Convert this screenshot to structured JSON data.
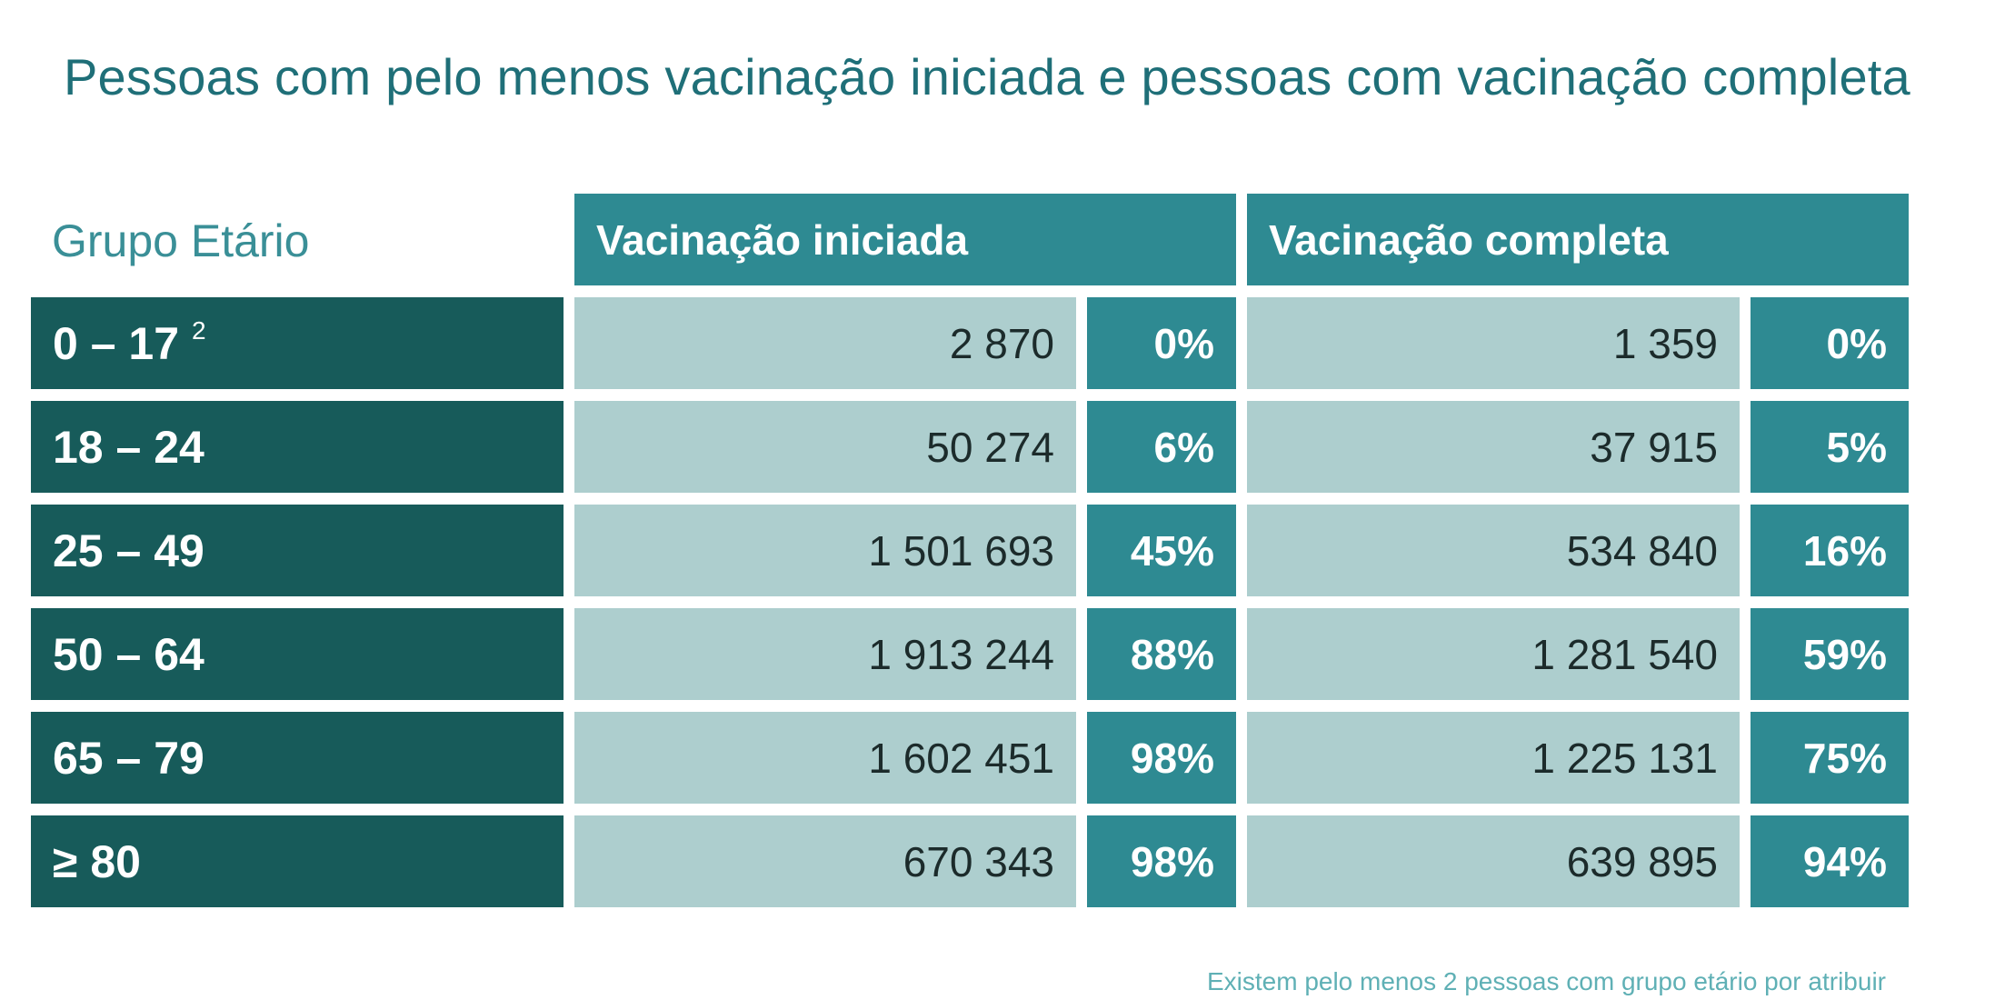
{
  "title": "Pessoas com pelo menos vacinação iniciada e pessoas com vacinação completa",
  "table": {
    "group_header": "Grupo Etário",
    "col_iniciada": "Vacinação iniciada",
    "col_completa": "Vacinação completa",
    "rows": [
      {
        "age": "0 – 17",
        "sup": "2",
        "ini_count": "2 870",
        "ini_pct": "0%",
        "com_count": "1 359",
        "com_pct": "0%"
      },
      {
        "age": "18 – 24",
        "sup": "",
        "ini_count": "50 274",
        "ini_pct": "6%",
        "com_count": "37 915",
        "com_pct": "5%"
      },
      {
        "age": "25 – 49",
        "sup": "",
        "ini_count": "1 501 693",
        "ini_pct": "45%",
        "com_count": "534 840",
        "com_pct": "16%"
      },
      {
        "age": "50 – 64",
        "sup": "",
        "ini_count": "1 913 244",
        "ini_pct": "88%",
        "com_count": "1 281 540",
        "com_pct": "59%"
      },
      {
        "age": "65 – 79",
        "sup": "",
        "ini_count": "1 602 451",
        "ini_pct": "98%",
        "com_count": "1 225 131",
        "com_pct": "75%"
      },
      {
        "age": "≥ 80",
        "sup": "",
        "ini_count": "670 343",
        "ini_pct": "98%",
        "com_count": "639 895",
        "com_pct": "94%"
      }
    ]
  },
  "footnote": "Existem pelo menos 2 pessoas com grupo etário por atribuir",
  "colors": {
    "title": "#1f6f78",
    "age_cell": "#175b5a",
    "header_cell": "#2e8a92",
    "count_cell": "#adcece",
    "footnote": "#5fb0b5"
  }
}
